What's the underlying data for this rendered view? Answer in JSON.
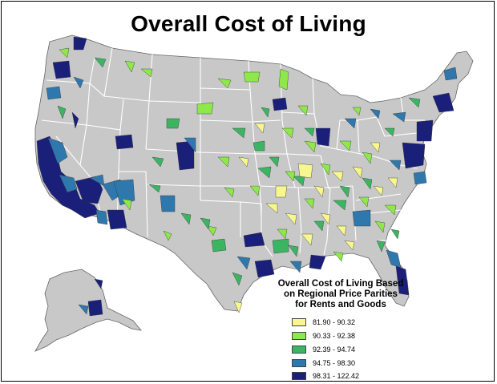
{
  "title": "Overall Cost of Living",
  "legend": {
    "title_lines": [
      "Overall Cost of Living Based",
      "on Regional Price Parities",
      "for Rents and Goods"
    ],
    "classes": [
      {
        "label": "81.90 - 90.32",
        "color": "#f8f78e"
      },
      {
        "label": "90.33 - 92.38",
        "color": "#8ee84a"
      },
      {
        "label": "92.39 - 94.74",
        "color": "#3cb563"
      },
      {
        "label": "94.75 - 98.30",
        "color": "#2f78ad"
      },
      {
        "label": "98.31 - 122.42",
        "color": "#1a1f7a"
      }
    ]
  },
  "colors": {
    "land": "#c8c8c8",
    "borders": "#ffffff",
    "outline": "#555555"
  }
}
